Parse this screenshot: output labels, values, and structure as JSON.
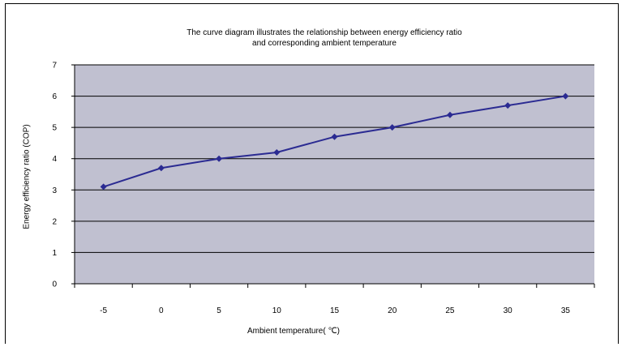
{
  "chart_data": {
    "type": "line",
    "title": "The curve diagram illustrates the relationship between energy efficiency ratio",
    "subtitle": "and corresponding ambient temperature",
    "xlabel": "Ambient temperature( ℃)",
    "ylabel": "Energy efficiency ratio (COP)",
    "x": [
      -5,
      0,
      5,
      10,
      15,
      20,
      25,
      30,
      35
    ],
    "x_tick_labels": [
      "-5",
      "0",
      "5",
      "10",
      "15",
      "20",
      "25",
      "30",
      "35"
    ],
    "y_tick_labels": [
      "0",
      "1",
      "2",
      "3",
      "4",
      "5",
      "6",
      "7"
    ],
    "ylim": [
      0,
      7
    ],
    "series": [
      {
        "values": [
          3.1,
          3.7,
          4.0,
          4.2,
          4.7,
          5.0,
          5.4,
          5.7,
          6.0
        ]
      }
    ],
    "grid": "horizontal",
    "legend": "none",
    "colors": {
      "plot_background": "#c0c0d0",
      "line": "#2b2b92",
      "marker": "#2b2b92",
      "grid": "#000000"
    }
  }
}
